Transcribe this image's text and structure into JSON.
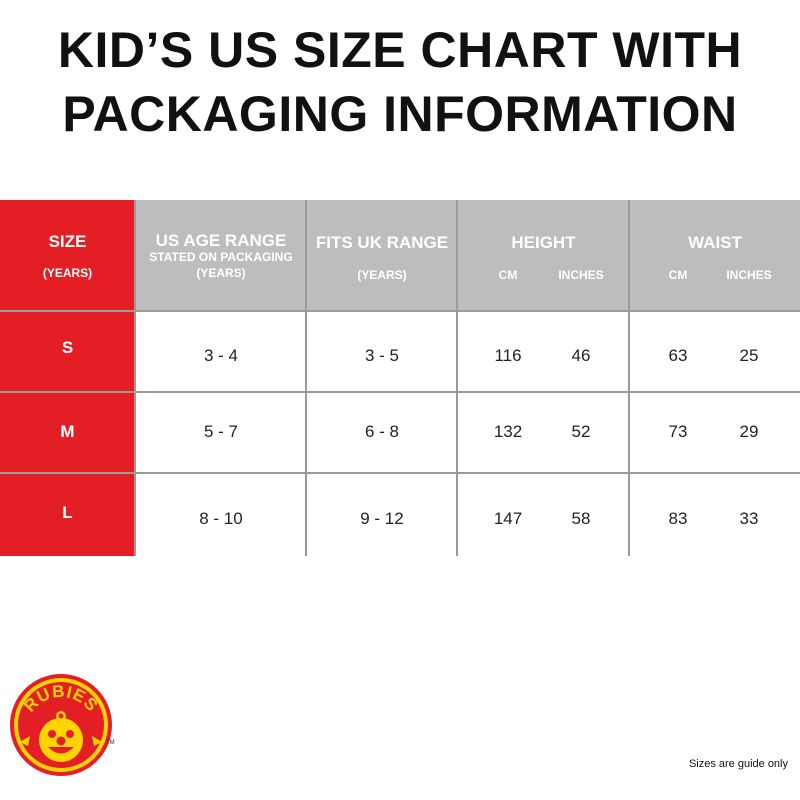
{
  "title": {
    "line1": "KID’S US SIZE CHART WITH",
    "line2": "PACKAGING INFORMATION"
  },
  "table": {
    "headers": {
      "size": {
        "main": "SIZE",
        "sub": "(YEARS)"
      },
      "us_age": {
        "main": "US AGE RANGE",
        "sub1": "STATED ON PACKAGING",
        "sub2": "(YEARS)"
      },
      "uk_range": {
        "main": "FITS UK RANGE",
        "sub": "(YEARS)"
      },
      "height": {
        "main": "HEIGHT",
        "cm": "CM",
        "inches": "INCHES"
      },
      "waist": {
        "main": "WAIST",
        "cm": "CM",
        "inches": "INCHES"
      }
    },
    "rows": [
      {
        "size": "S",
        "us_age": "3 - 4",
        "uk_range": "3 - 5",
        "height_cm": "116",
        "height_in": "46",
        "waist_cm": "63",
        "waist_in": "25"
      },
      {
        "size": "M",
        "us_age": "5 - 7",
        "uk_range": "6 - 8",
        "height_cm": "132",
        "height_in": "52",
        "waist_cm": "73",
        "waist_in": "29"
      },
      {
        "size": "L",
        "us_age": "8 - 10",
        "uk_range": "9 - 12",
        "height_cm": "147",
        "height_in": "58",
        "waist_cm": "83",
        "waist_in": "33"
      }
    ]
  },
  "logo": {
    "text": "RUBIES",
    "trademark": "TM"
  },
  "colors": {
    "red": "#e31e24",
    "header_grey": "#bdbdbd",
    "logo_red": "#e31e24",
    "logo_yellow": "#ffd400"
  },
  "footnote": "Sizes are guide only"
}
